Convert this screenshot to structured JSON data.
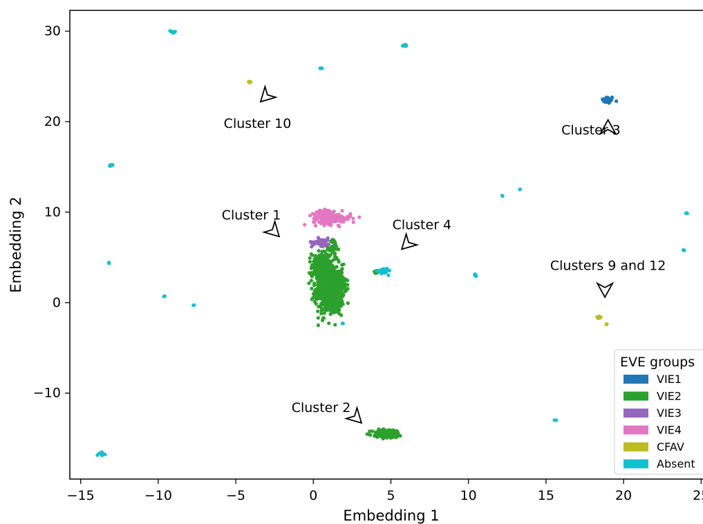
{
  "chart_data": {
    "type": "scatter",
    "xlabel": "Embedding 1",
    "ylabel": "Embedding 2",
    "xlim": [
      -15.7,
      25.3
    ],
    "ylim": [
      -19.5,
      32.3
    ],
    "xticks": [
      -15,
      -10,
      -5,
      0,
      5,
      10,
      15,
      20,
      25
    ],
    "xtick_labels": [
      "−15",
      "−10",
      "−5",
      "0",
      "5",
      "10",
      "15",
      "20",
      "25"
    ],
    "yticks": [
      -10,
      0,
      10,
      20,
      30
    ],
    "ytick_labels": [
      "−10",
      "0",
      "10",
      "20",
      "30"
    ],
    "grid": false,
    "legend": {
      "title": "EVE groups",
      "placement": "bottom-right",
      "entries": [
        {
          "label": "VIE1",
          "color": "#1f77b4"
        },
        {
          "label": "VIE2",
          "color": "#2ca02c"
        },
        {
          "label": "VIE3",
          "color": "#9467bd"
        },
        {
          "label": "VIE4",
          "color": "#e377c2"
        },
        {
          "label": "CFAV",
          "color": "#bcbd22"
        },
        {
          "label": "Absent",
          "color": "#17becf"
        }
      ]
    },
    "series": [
      {
        "name": "VIE1",
        "color": "#1f77b4",
        "clusters": [
          {
            "cx": 19.0,
            "cy": 22.4,
            "rx": 0.35,
            "ry": 0.35,
            "n": 40
          }
        ]
      },
      {
        "name": "VIE2",
        "color": "#2ca02c",
        "clusters": [
          {
            "cx": 1.0,
            "cy": 1.5,
            "rx": 0.8,
            "ry": 2.5,
            "n": 500
          },
          {
            "cx": 0.5,
            "cy": 4.0,
            "rx": 0.55,
            "ry": 1.5,
            "n": 180
          },
          {
            "cx": 1.6,
            "cy": 2.0,
            "rx": 0.5,
            "ry": 1.3,
            "n": 150
          },
          {
            "cx": 1.3,
            "cy": -0.3,
            "rx": 0.5,
            "ry": 0.8,
            "n": 80
          },
          {
            "cx": 1.3,
            "cy": 6.0,
            "rx": 0.25,
            "ry": 1.0,
            "n": 40
          },
          {
            "cx": 4.8,
            "cy": -14.5,
            "rx": 0.9,
            "ry": 0.45,
            "n": 140
          },
          {
            "cx": 4.1,
            "cy": 3.4,
            "rx": 0.2,
            "ry": 0.2,
            "n": 10
          }
        ]
      },
      {
        "name": "VIE3",
        "color": "#9467bd",
        "clusters": [
          {
            "cx": 0.5,
            "cy": 6.7,
            "rx": 0.55,
            "ry": 0.4,
            "n": 60
          }
        ]
      },
      {
        "name": "VIE4",
        "color": "#e377c2",
        "clusters": [
          {
            "cx": 1.2,
            "cy": 9.3,
            "rx": 1.1,
            "ry": 0.6,
            "n": 160
          },
          {
            "cx": 0.7,
            "cy": 9.9,
            "rx": 0.4,
            "ry": 0.3,
            "n": 30
          }
        ]
      },
      {
        "name": "CFAV",
        "color": "#bcbd22",
        "clusters": [
          {
            "cx": -4.1,
            "cy": 24.4,
            "rx": 0.1,
            "ry": 0.08,
            "n": 6
          },
          {
            "cx": 18.4,
            "cy": -1.6,
            "rx": 0.15,
            "ry": 0.1,
            "n": 8
          },
          {
            "cx": 18.9,
            "cy": -2.4,
            "rx": 0.08,
            "ry": 0.06,
            "n": 4
          }
        ]
      },
      {
        "name": "Absent",
        "color": "#17becf",
        "clusters": [
          {
            "cx": -9.1,
            "cy": 29.9,
            "rx": 0.2,
            "ry": 0.15,
            "n": 12
          },
          {
            "cx": 5.9,
            "cy": 28.4,
            "rx": 0.15,
            "ry": 0.1,
            "n": 8
          },
          {
            "cx": 0.5,
            "cy": 25.9,
            "rx": 0.08,
            "ry": 0.06,
            "n": 4
          },
          {
            "cx": -13.0,
            "cy": 15.2,
            "rx": 0.15,
            "ry": 0.12,
            "n": 8
          },
          {
            "cx": 12.2,
            "cy": 11.8,
            "rx": 0.05,
            "ry": 0.05,
            "n": 2
          },
          {
            "cx": 13.3,
            "cy": 12.5,
            "rx": 0.05,
            "ry": 0.05,
            "n": 2
          },
          {
            "cx": 24.1,
            "cy": 9.9,
            "rx": 0.07,
            "ry": 0.06,
            "n": 3
          },
          {
            "cx": 23.9,
            "cy": 5.8,
            "rx": 0.08,
            "ry": 0.06,
            "n": 3
          },
          {
            "cx": 4.5,
            "cy": 3.5,
            "rx": 0.3,
            "ry": 0.3,
            "n": 35
          },
          {
            "cx": -13.2,
            "cy": 4.4,
            "rx": 0.05,
            "ry": 0.05,
            "n": 2
          },
          {
            "cx": -9.6,
            "cy": 0.7,
            "rx": 0.08,
            "ry": 0.06,
            "n": 3
          },
          {
            "cx": -7.7,
            "cy": -0.3,
            "rx": 0.05,
            "ry": 0.05,
            "n": 2
          },
          {
            "cx": 10.4,
            "cy": 3.0,
            "rx": 0.1,
            "ry": 0.1,
            "n": 5
          },
          {
            "cx": 1.9,
            "cy": -2.3,
            "rx": 0.05,
            "ry": 0.05,
            "n": 2
          },
          {
            "cx": 15.6,
            "cy": -13.0,
            "rx": 0.05,
            "ry": 0.05,
            "n": 2
          },
          {
            "cx": -13.6,
            "cy": -16.7,
            "rx": 0.2,
            "ry": 0.15,
            "n": 12
          }
        ]
      }
    ],
    "annotations": [
      {
        "text": "Cluster 10",
        "text_x": -3.6,
        "text_y": 19.3,
        "arrow_x": -3.4,
        "arrow_y": 22.2,
        "direction": "down-left"
      },
      {
        "text": "Cluster 3",
        "text_x": 17.9,
        "text_y": 18.6,
        "arrow_x": 19.0,
        "arrow_y": 20.2,
        "direction": "up"
      },
      {
        "text": "Cluster 1",
        "text_x": -4.0,
        "text_y": 9.2,
        "arrow_x": -2.2,
        "arrow_y": 7.3,
        "direction": "down-right"
      },
      {
        "text": "Cluster 4",
        "text_x": 7.0,
        "text_y": 8.1,
        "arrow_x": 5.7,
        "arrow_y": 5.9,
        "direction": "down-left"
      },
      {
        "text": "Clusters 9 and 12",
        "text_x": 19.0,
        "text_y": 3.6,
        "arrow_x": 18.8,
        "arrow_y": 0.6,
        "direction": "down"
      },
      {
        "text": "Cluster 2",
        "text_x": 0.5,
        "text_y": -12.1,
        "arrow_x": 3.1,
        "arrow_y": -13.3,
        "direction": "down-right"
      }
    ]
  }
}
